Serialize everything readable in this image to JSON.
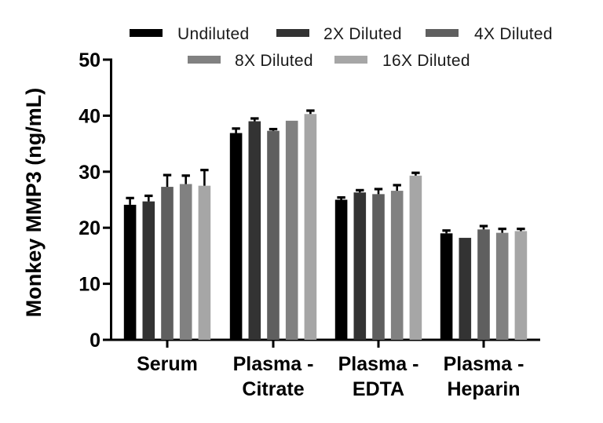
{
  "figure": {
    "background": "#ffffff",
    "axis_color": "#000000",
    "error_bar_color": "#000000"
  },
  "chart_data": {
    "type": "bar",
    "title": "",
    "ylabel": "Monkey MMP3 (ng/mL)",
    "xlabel": "",
    "ylim": [
      0,
      50
    ],
    "yticks": [
      0,
      10,
      20,
      30,
      40,
      50
    ],
    "grid": false,
    "legend_position": "top",
    "error_bars": true,
    "categories": [
      {
        "line1": "Serum",
        "line2": ""
      },
      {
        "line1": "Plasma -",
        "line2": "Citrate"
      },
      {
        "line1": "Plasma -",
        "line2": "EDTA"
      },
      {
        "line1": "Plasma -",
        "line2": "Heparin"
      }
    ],
    "series": [
      {
        "name": "Undiluted",
        "color": "#000000",
        "values": [
          24.1,
          36.9,
          25.0,
          19.0
        ],
        "errors": [
          1.2,
          0.8,
          0.4,
          0.5
        ]
      },
      {
        "name": "2X Diluted",
        "color": "#333333",
        "values": [
          24.7,
          39.0,
          26.3,
          18.2
        ],
        "errors": [
          1.0,
          0.5,
          0.4,
          0.0
        ]
      },
      {
        "name": "4X Diluted",
        "color": "#5f5f5f",
        "values": [
          27.3,
          37.3,
          26.0,
          19.7
        ],
        "errors": [
          2.1,
          0.3,
          0.9,
          0.6
        ]
      },
      {
        "name": "8X Diluted",
        "color": "#818181",
        "values": [
          27.8,
          39.1,
          26.6,
          19.1
        ],
        "errors": [
          1.5,
          0.0,
          1.0,
          0.7
        ]
      },
      {
        "name": "16X Diluted",
        "color": "#a6a6a6",
        "values": [
          27.5,
          40.3,
          29.3,
          19.4
        ],
        "errors": [
          2.8,
          0.6,
          0.5,
          0.4
        ]
      }
    ]
  }
}
